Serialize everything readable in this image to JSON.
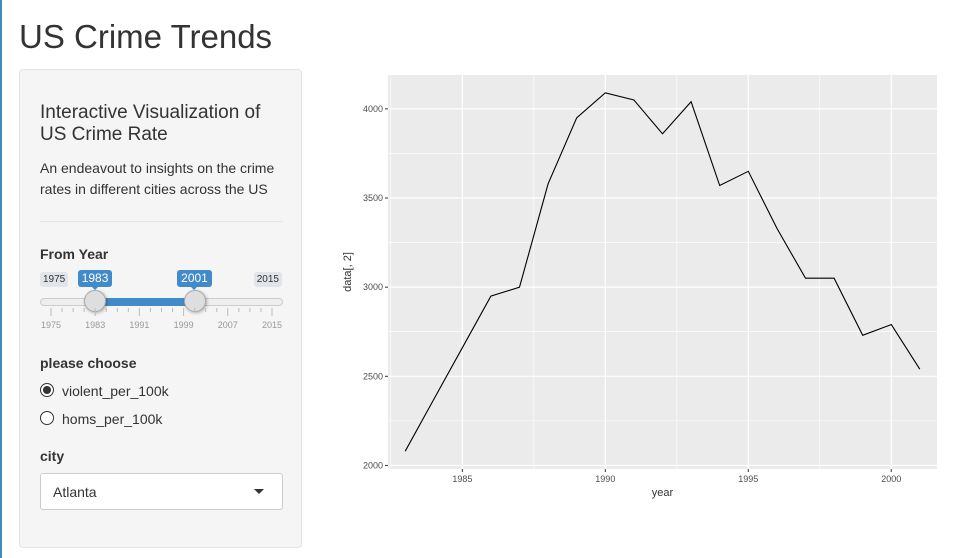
{
  "page": {
    "title": "US Crime Trends",
    "accent_color": "#428bca"
  },
  "sidebar": {
    "heading": "Interactive Visualization of US Crime Rate",
    "description": "An endeavout to insights on the crime rates in different cities across the US",
    "year_slider": {
      "label": "From Year",
      "min": "1975",
      "max": "2015",
      "from": "1983",
      "to": "2001",
      "from_fraction": 0.2,
      "to_fraction": 0.65,
      "grid_labels": [
        "1975",
        "1983",
        "1991",
        "1999",
        "2007",
        "2015"
      ]
    },
    "radio": {
      "label": "please choose",
      "options": [
        {
          "label": "violent_per_100k",
          "checked": true
        },
        {
          "label": "homs_per_100k",
          "checked": false
        }
      ]
    },
    "city": {
      "label": "city",
      "selected": "Atlanta"
    }
  },
  "chart_data": {
    "type": "line",
    "xlabel": "year",
    "ylabel": "data[, 2]",
    "xlim": [
      1982.4,
      2001.6
    ],
    "ylim": [
      1980,
      4190
    ],
    "x_ticks": [
      1985,
      1990,
      1995,
      2000
    ],
    "y_ticks": [
      2000,
      2500,
      3000,
      3500,
      4000
    ],
    "grid": true,
    "panel_color": "#ebebeb",
    "line_color": "#000000",
    "x": [
      1983,
      1984,
      1985,
      1986,
      1987,
      1988,
      1989,
      1990,
      1991,
      1992,
      1993,
      1994,
      1995,
      1996,
      1997,
      1998,
      1999,
      2000,
      2001
    ],
    "values": [
      2080,
      2370,
      2660,
      2950,
      3000,
      3580,
      3950,
      4090,
      4050,
      3860,
      4040,
      3570,
      3650,
      3330,
      3050,
      3050,
      2730,
      2790,
      2540
    ]
  }
}
